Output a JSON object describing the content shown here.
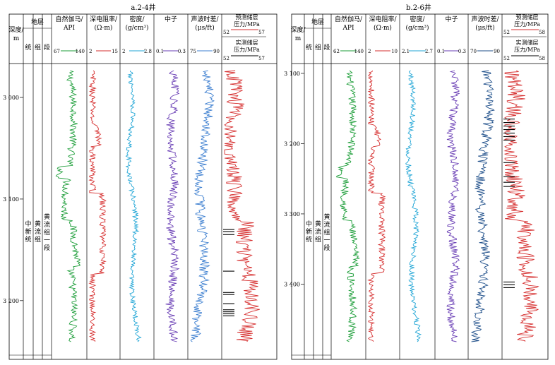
{
  "panels": [
    {
      "title": "a.2-4井",
      "headers": {
        "depth": [
          "深度/",
          "m"
        ],
        "strata": "地层",
        "strata_sub": [
          "统",
          "组",
          "段"
        ],
        "strata_text": {
          "series": "中新统",
          "formation": "黄流组",
          "member": "黄流组一段"
        }
      }
    },
    {
      "title": "b.2-6井",
      "headers": {
        "depth": [
          "深度/",
          "m"
        ],
        "strata": "地层",
        "strata_sub": [
          "统",
          "组",
          "段"
        ],
        "strata_text": {
          "series": "中新统",
          "formation": "黄流组",
          "member": "黄流组一段"
        }
      }
    }
  ],
  "chart_data": [
    {
      "type": "line",
      "title": "a.2-4井",
      "depth_range": [
        2968,
        3246
      ],
      "depth_ticks": [
        3000,
        3100,
        3200
      ],
      "depth_tick_labels": [
        "3 000",
        "3 100",
        "3 200"
      ],
      "tracks": [
        {
          "name": "自然伽马/API",
          "label": [
            "自然伽马/",
            "API"
          ],
          "range": [
            67,
            140
          ],
          "color": "#1e9e3a"
        },
        {
          "name": "深电阻率/(Ω·m)",
          "label": [
            "深电阻率/",
            "(Ω·m)"
          ],
          "range": [
            2,
            15
          ],
          "color": "#d62f2f"
        },
        {
          "name": "密度/(g/cm³)",
          "label": [
            "密度/",
            "(g/cm³)"
          ],
          "range": [
            2,
            2.8
          ],
          "color": "#22a6d6"
        },
        {
          "name": "中子",
          "label": [
            "中子",
            ""
          ],
          "range": [
            0.1,
            0.3
          ],
          "color": "#6a3fb5"
        },
        {
          "name": "声波时差/(μs/ft)",
          "label": [
            "声波时差/",
            "(μs/ft)"
          ],
          "range": [
            75,
            90
          ],
          "color": "#3d7fd0"
        },
        {
          "name": "预测储层压力/MPa",
          "label": [
            "预测储层",
            "压力/MPa"
          ],
          "label2": [
            "实测储层",
            "压力/MPa"
          ],
          "range": [
            52,
            57
          ],
          "color": "#d62f2f",
          "measured_depths": [
            3130,
            3132,
            3135,
            3171,
            3192,
            3194,
            3203,
            3209,
            3211,
            3213,
            3215
          ]
        }
      ]
    },
    {
      "type": "line",
      "title": "b.2-6井",
      "depth_range": [
        3088,
        3490
      ],
      "depth_ticks": [
        3100,
        3200,
        3300,
        3400
      ],
      "depth_tick_labels": [
        "3 100",
        "3 200",
        "3 300",
        "3 400"
      ],
      "tracks": [
        {
          "name": "自然伽马/API",
          "label": [
            "自然伽马/",
            "API"
          ],
          "range": [
            62,
            140
          ],
          "color": "#1e9e3a"
        },
        {
          "name": "深电阻率/(Ω·m)",
          "label": [
            "深电阻率/",
            "(Ω·m)"
          ],
          "range": [
            2,
            10
          ],
          "color": "#d62f2f"
        },
        {
          "name": "密度/(g/cm³)",
          "label": [
            "密度/",
            "(g/cm³)"
          ],
          "range": [
            2.1,
            2.7
          ],
          "color": "#22a6d6"
        },
        {
          "name": "中子",
          "label": [
            "中子",
            ""
          ],
          "range": [
            0.1,
            0.3
          ],
          "color": "#6a3fb5"
        },
        {
          "name": "声波时差/(μs/ft)",
          "label": [
            "声波时差/",
            "(μs/ft)"
          ],
          "range": [
            70,
            90
          ],
          "color": "#1f4f8a"
        },
        {
          "name": "预测储层压力/MPa",
          "label": [
            "预测储层",
            "压力/MPa"
          ],
          "label2": [
            "实测储层",
            "压力/MPa"
          ],
          "range": [
            52,
            58
          ],
          "color": "#d62f2f",
          "measured_depths": [
            3165,
            3170,
            3175,
            3180,
            3185,
            3190,
            3195,
            3227,
            3247,
            3255,
            3261,
            3397,
            3401,
            3405
          ]
        }
      ]
    }
  ]
}
